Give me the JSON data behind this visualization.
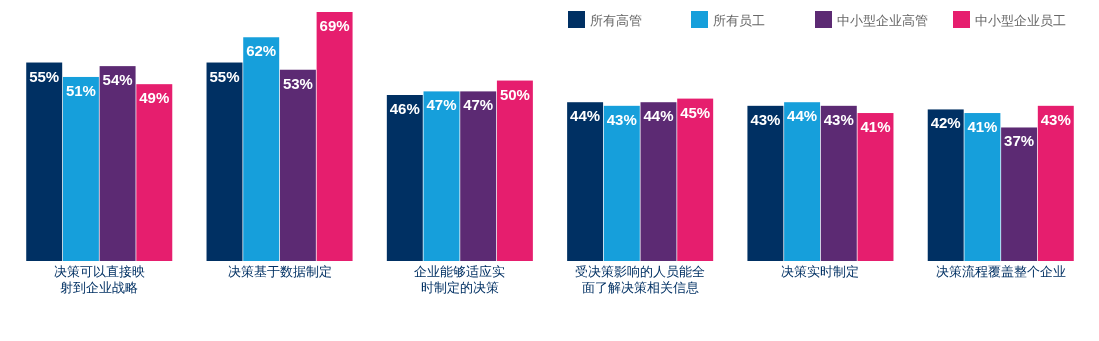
{
  "chart_data": {
    "type": "bar",
    "categories": [
      "决策可以直接映射到企业战略",
      "决策基于数据制定",
      "企业能够适应实时制定的决策",
      "受决策影响的人员能全面了解决策相关信息",
      "决策实时制定",
      "决策流程覆盖整个企业"
    ],
    "series": [
      {
        "name": "所有高管",
        "color": "#003063",
        "values": [
          55,
          55,
          46,
          44,
          43,
          42
        ],
        "value_labels": [
          "55%",
          "55%",
          "46%",
          "44%",
          "43%",
          "42%"
        ]
      },
      {
        "name": "所有员工",
        "color": "#169fdb",
        "values": [
          51,
          62,
          47,
          43,
          44,
          41
        ],
        "value_labels": [
          "51%",
          "62%",
          "47%",
          "43%",
          "44%",
          "41%"
        ]
      },
      {
        "name": "中小型企业高管",
        "color": "#5c2a73",
        "values": [
          54,
          53,
          47,
          44,
          43,
          37
        ],
        "value_labels": [
          "54%",
          "53%",
          "47%",
          "44%",
          "43%",
          "37%"
        ]
      },
      {
        "name": "中小型企业员工",
        "color": "#e61e6e",
        "values": [
          49,
          69,
          50,
          45,
          41,
          43
        ],
        "value_labels": [
          "49%",
          "69%",
          "50%",
          "45%",
          "41%",
          "43%"
        ]
      }
    ],
    "legend": "top right"
  }
}
